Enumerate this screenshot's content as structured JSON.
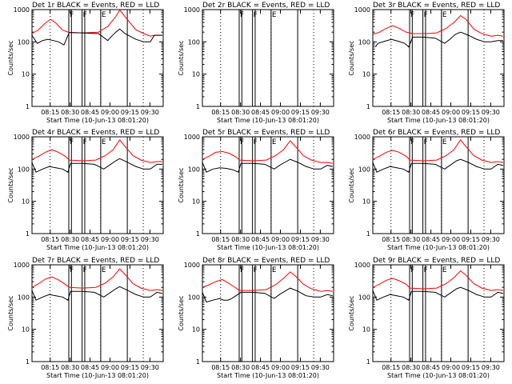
{
  "chart_data": {
    "type": "line",
    "shared": {
      "ylabel": "Counts/sec",
      "xlabel": "Start Time (10-Jun-13 08:01:20)",
      "x_ticks": [
        "08:15",
        "08:30",
        "08:45",
        "09:00",
        "09:15",
        "09:30"
      ],
      "y_ticks": [
        "1",
        "10",
        "100",
        "1000"
      ],
      "yscale": "log",
      "ylim": [
        1,
        1000
      ],
      "xlim_minutes": [
        0,
        98.67
      ],
      "series_colors": {
        "Events": "#000000",
        "LLD": "#ff0000"
      },
      "markers": [
        {
          "label": "F",
          "start": "08:29",
          "end": "08:31"
        },
        {
          "label": "F",
          "start": "08:39",
          "end": "08:41"
        },
        {
          "label": "E",
          "start": "08:53",
          "end": "09:13"
        }
      ],
      "dotted_lines": [
        "08:15",
        "08:53",
        "09:25"
      ]
    },
    "panels": [
      {
        "title": "Det 1r BLACK = Events, RED = LLD",
        "lld": [
          [
            0,
            180
          ],
          [
            5,
            240
          ],
          [
            10,
            380
          ],
          [
            14,
            500
          ],
          [
            18,
            380
          ],
          [
            23,
            230
          ],
          [
            28,
            195
          ],
          [
            38,
            190
          ],
          [
            50,
            200
          ],
          [
            57,
            300
          ],
          [
            63,
            600
          ],
          [
            66,
            980
          ],
          [
            70,
            600
          ],
          [
            78,
            240
          ],
          [
            84,
            180
          ],
          [
            89,
            150
          ],
          [
            92,
            160
          ],
          [
            98,
            160
          ]
        ],
        "events": [
          [
            0,
            160
          ],
          [
            4,
            90
          ],
          [
            8,
            110
          ],
          [
            12,
            120
          ],
          [
            16,
            110
          ],
          [
            20,
            100
          ],
          [
            24,
            80
          ],
          [
            28,
            195
          ],
          [
            38,
            190
          ],
          [
            50,
            180
          ],
          [
            57,
            110
          ],
          [
            60,
            150
          ],
          [
            63,
            200
          ],
          [
            66,
            250
          ],
          [
            70,
            180
          ],
          [
            78,
            120
          ],
          [
            84,
            100
          ],
          [
            89,
            100
          ],
          [
            92,
            160
          ],
          [
            98,
            160
          ]
        ]
      },
      {
        "title": "Det 2r BLACK = Events, RED = LLD",
        "lld": [],
        "events": []
      },
      {
        "title": "Det 3r BLACK = Events, RED = LLD",
        "lld": [
          [
            0,
            170
          ],
          [
            5,
            200
          ],
          [
            10,
            260
          ],
          [
            15,
            320
          ],
          [
            20,
            260
          ],
          [
            25,
            200
          ],
          [
            30,
            180
          ],
          [
            40,
            180
          ],
          [
            48,
            190
          ],
          [
            55,
            260
          ],
          [
            61,
            400
          ],
          [
            66,
            650
          ],
          [
            70,
            500
          ],
          [
            76,
            250
          ],
          [
            82,
            180
          ],
          [
            89,
            150
          ],
          [
            94,
            160
          ],
          [
            98,
            150
          ]
        ],
        "events": [
          [
            2,
            70
          ],
          [
            4,
            90
          ],
          [
            9,
            105
          ],
          [
            14,
            120
          ],
          [
            19,
            105
          ],
          [
            24,
            90
          ],
          [
            27,
            70
          ],
          [
            30,
            140
          ],
          [
            38,
            140
          ],
          [
            47,
            130
          ],
          [
            54,
            90
          ],
          [
            58,
            120
          ],
          [
            62,
            170
          ],
          [
            66,
            200
          ],
          [
            72,
            160
          ],
          [
            78,
            120
          ],
          [
            84,
            100
          ],
          [
            89,
            100
          ],
          [
            94,
            110
          ],
          [
            98,
            110
          ]
        ]
      },
      {
        "title": "Det 4r BLACK = Events, RED = LLD",
        "lld": [
          [
            0,
            200
          ],
          [
            5,
            250
          ],
          [
            10,
            330
          ],
          [
            15,
            400
          ],
          [
            20,
            330
          ],
          [
            25,
            250
          ],
          [
            28,
            190
          ],
          [
            38,
            180
          ],
          [
            48,
            190
          ],
          [
            55,
            260
          ],
          [
            61,
            400
          ],
          [
            66,
            800
          ],
          [
            70,
            500
          ],
          [
            76,
            260
          ],
          [
            82,
            190
          ],
          [
            89,
            160
          ],
          [
            94,
            170
          ],
          [
            98,
            170
          ]
        ],
        "events": [
          [
            0,
            160
          ],
          [
            3,
            80
          ],
          [
            8,
            100
          ],
          [
            13,
            120
          ],
          [
            18,
            110
          ],
          [
            23,
            100
          ],
          [
            27,
            80
          ],
          [
            29,
            150
          ],
          [
            38,
            150
          ],
          [
            47,
            140
          ],
          [
            54,
            100
          ],
          [
            58,
            130
          ],
          [
            63,
            180
          ],
          [
            66,
            210
          ],
          [
            72,
            160
          ],
          [
            78,
            120
          ],
          [
            84,
            100
          ],
          [
            89,
            100
          ],
          [
            94,
            140
          ],
          [
            98,
            140
          ]
        ]
      },
      {
        "title": "Det 5r BLACK = Events, RED = LLD",
        "lld": [
          [
            0,
            200
          ],
          [
            5,
            250
          ],
          [
            10,
            330
          ],
          [
            15,
            350
          ],
          [
            20,
            310
          ],
          [
            25,
            240
          ],
          [
            28,
            190
          ],
          [
            38,
            180
          ],
          [
            48,
            190
          ],
          [
            55,
            260
          ],
          [
            61,
            400
          ],
          [
            66,
            750
          ],
          [
            70,
            500
          ],
          [
            76,
            260
          ],
          [
            82,
            190
          ],
          [
            89,
            160
          ],
          [
            94,
            160
          ],
          [
            98,
            150
          ]
        ],
        "events": [
          [
            0,
            160
          ],
          [
            3,
            80
          ],
          [
            8,
            100
          ],
          [
            13,
            110
          ],
          [
            18,
            105
          ],
          [
            23,
            95
          ],
          [
            27,
            80
          ],
          [
            29,
            150
          ],
          [
            38,
            150
          ],
          [
            47,
            140
          ],
          [
            54,
            100
          ],
          [
            58,
            130
          ],
          [
            63,
            170
          ],
          [
            66,
            200
          ],
          [
            72,
            160
          ],
          [
            78,
            120
          ],
          [
            84,
            100
          ],
          [
            89,
            100
          ],
          [
            94,
            130
          ],
          [
            98,
            120
          ]
        ]
      },
      {
        "title": "Det 6r BLACK = Events, RED = LLD",
        "lld": [
          [
            0,
            200
          ],
          [
            5,
            250
          ],
          [
            10,
            330
          ],
          [
            15,
            380
          ],
          [
            20,
            330
          ],
          [
            25,
            250
          ],
          [
            28,
            190
          ],
          [
            38,
            180
          ],
          [
            48,
            190
          ],
          [
            55,
            260
          ],
          [
            61,
            400
          ],
          [
            66,
            800
          ],
          [
            70,
            500
          ],
          [
            76,
            260
          ],
          [
            82,
            190
          ],
          [
            89,
            160
          ],
          [
            94,
            170
          ],
          [
            98,
            160
          ]
        ],
        "events": [
          [
            0,
            160
          ],
          [
            3,
            80
          ],
          [
            8,
            100
          ],
          [
            13,
            120
          ],
          [
            18,
            110
          ],
          [
            23,
            100
          ],
          [
            27,
            80
          ],
          [
            29,
            150
          ],
          [
            38,
            150
          ],
          [
            47,
            140
          ],
          [
            54,
            100
          ],
          [
            58,
            130
          ],
          [
            63,
            180
          ],
          [
            66,
            200
          ],
          [
            72,
            160
          ],
          [
            78,
            120
          ],
          [
            84,
            100
          ],
          [
            89,
            100
          ],
          [
            94,
            140
          ],
          [
            98,
            130
          ]
        ]
      },
      {
        "title": "Det 7r BLACK = Events, RED = LLD",
        "lld": [
          [
            0,
            200
          ],
          [
            5,
            260
          ],
          [
            10,
            360
          ],
          [
            15,
            420
          ],
          [
            20,
            340
          ],
          [
            25,
            250
          ],
          [
            28,
            200
          ],
          [
            38,
            190
          ],
          [
            48,
            200
          ],
          [
            55,
            270
          ],
          [
            61,
            420
          ],
          [
            66,
            750
          ],
          [
            70,
            500
          ],
          [
            76,
            260
          ],
          [
            82,
            190
          ],
          [
            89,
            160
          ],
          [
            94,
            170
          ],
          [
            98,
            160
          ]
        ],
        "events": [
          [
            0,
            160
          ],
          [
            3,
            80
          ],
          [
            8,
            100
          ],
          [
            13,
            120
          ],
          [
            18,
            110
          ],
          [
            23,
            100
          ],
          [
            27,
            80
          ],
          [
            29,
            150
          ],
          [
            38,
            150
          ],
          [
            47,
            140
          ],
          [
            54,
            100
          ],
          [
            58,
            130
          ],
          [
            63,
            180
          ],
          [
            66,
            210
          ],
          [
            72,
            160
          ],
          [
            78,
            120
          ],
          [
            84,
            100
          ],
          [
            89,
            100
          ],
          [
            94,
            140
          ],
          [
            98,
            130
          ]
        ]
      },
      {
        "title": "Det 8r BLACK = Events, RED = LLD",
        "lld": [
          [
            0,
            200
          ],
          [
            5,
            240
          ],
          [
            10,
            300
          ],
          [
            15,
            350
          ],
          [
            19,
            280
          ],
          [
            23,
            220
          ],
          [
            28,
            160
          ],
          [
            38,
            160
          ],
          [
            48,
            170
          ],
          [
            55,
            240
          ],
          [
            61,
            380
          ],
          [
            66,
            600
          ],
          [
            70,
            450
          ],
          [
            76,
            250
          ],
          [
            82,
            180
          ],
          [
            89,
            150
          ],
          [
            94,
            160
          ],
          [
            98,
            150
          ]
        ],
        "events": [
          [
            0,
            140
          ],
          [
            3,
            70
          ],
          [
            8,
            80
          ],
          [
            13,
            90
          ],
          [
            16,
            80
          ],
          [
            19,
            80
          ],
          [
            22,
            90
          ],
          [
            29,
            140
          ],
          [
            38,
            140
          ],
          [
            47,
            130
          ],
          [
            54,
            90
          ],
          [
            58,
            120
          ],
          [
            63,
            160
          ],
          [
            66,
            190
          ],
          [
            72,
            150
          ],
          [
            78,
            110
          ],
          [
            84,
            100
          ],
          [
            89,
            100
          ],
          [
            94,
            120
          ],
          [
            98,
            110
          ]
        ]
      },
      {
        "title": "Det 9r BLACK = Events, RED = LLD",
        "lld": [
          [
            0,
            200
          ],
          [
            5,
            250
          ],
          [
            10,
            330
          ],
          [
            15,
            380
          ],
          [
            20,
            320
          ],
          [
            25,
            250
          ],
          [
            28,
            190
          ],
          [
            38,
            180
          ],
          [
            48,
            190
          ],
          [
            55,
            260
          ],
          [
            61,
            400
          ],
          [
            66,
            650
          ],
          [
            70,
            480
          ],
          [
            76,
            260
          ],
          [
            82,
            190
          ],
          [
            89,
            160
          ],
          [
            94,
            170
          ],
          [
            98,
            160
          ]
        ],
        "events": [
          [
            0,
            160
          ],
          [
            3,
            80
          ],
          [
            8,
            100
          ],
          [
            13,
            120
          ],
          [
            18,
            110
          ],
          [
            23,
            100
          ],
          [
            27,
            80
          ],
          [
            29,
            150
          ],
          [
            38,
            150
          ],
          [
            47,
            140
          ],
          [
            54,
            100
          ],
          [
            58,
            130
          ],
          [
            63,
            180
          ],
          [
            66,
            200
          ],
          [
            72,
            160
          ],
          [
            78,
            120
          ],
          [
            84,
            100
          ],
          [
            89,
            100
          ],
          [
            94,
            140
          ],
          [
            98,
            130
          ]
        ]
      }
    ]
  }
}
